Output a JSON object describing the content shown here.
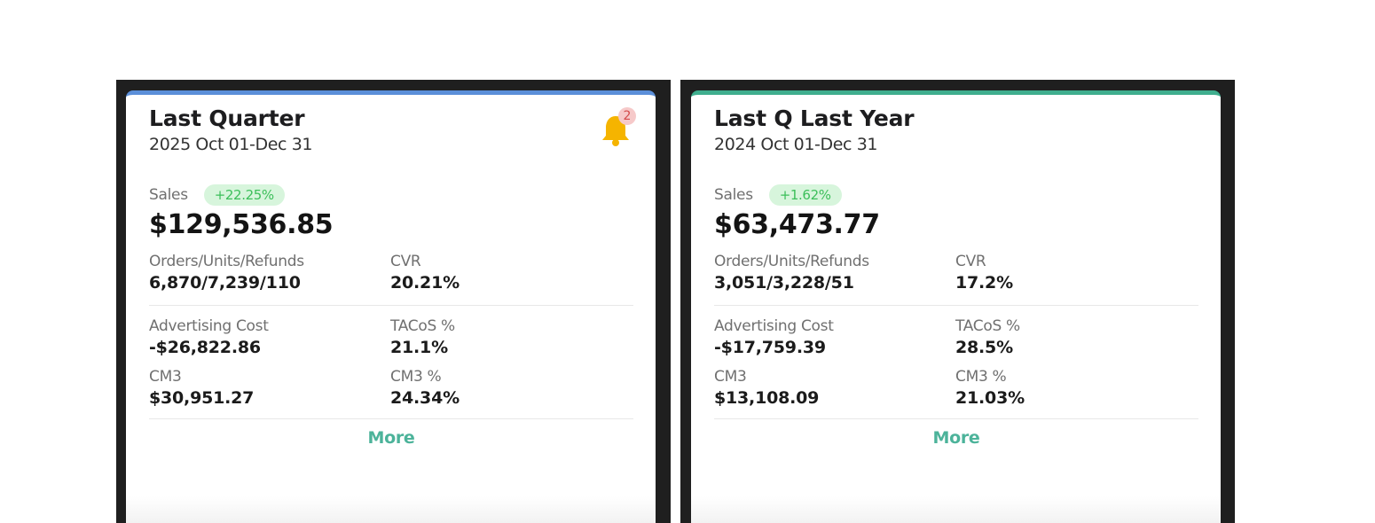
{
  "colors": {
    "left_accent": "#5b8fd9",
    "right_accent": "#3fae8e",
    "badge_bg": "#d7f5dc",
    "badge_text": "#3cbf5a",
    "more_link": "#4cb39a",
    "bell": "#f5b400"
  },
  "cards": [
    {
      "title": "Last Quarter",
      "date_range": "2025 Oct 01-Dec 31",
      "notification_count": "2",
      "sales_label": "Sales",
      "sales_change": "+22.25%",
      "sales_value": "$129,536.85",
      "metrics": {
        "orders_label": "Orders/Units/Refunds",
        "orders_value": "6,870/7,239/110",
        "cvr_label": "CVR",
        "cvr_value": "20.21%",
        "ad_cost_label": "Advertising Cost",
        "ad_cost_value": "-$26,822.86",
        "tacos_label": "TACoS %",
        "tacos_value": "21.1%",
        "cm3_label": "CM3",
        "cm3_value": "$30,951.27",
        "cm3_pct_label": "CM3 %",
        "cm3_pct_value": "24.34%"
      },
      "more_label": "More"
    },
    {
      "title": "Last Q Last Year",
      "date_range": "2024 Oct 01-Dec 31",
      "sales_label": "Sales",
      "sales_change": "+1.62%",
      "sales_value": "$63,473.77",
      "metrics": {
        "orders_label": "Orders/Units/Refunds",
        "orders_value": "3,051/3,228/51",
        "cvr_label": "CVR",
        "cvr_value": "17.2%",
        "ad_cost_label": "Advertising Cost",
        "ad_cost_value": "-$17,759.39",
        "tacos_label": "TACoS %",
        "tacos_value": "28.5%",
        "cm3_label": "CM3",
        "cm3_value": "$13,108.09",
        "cm3_pct_label": "CM3 %",
        "cm3_pct_value": "21.03%"
      },
      "more_label": "More"
    }
  ]
}
